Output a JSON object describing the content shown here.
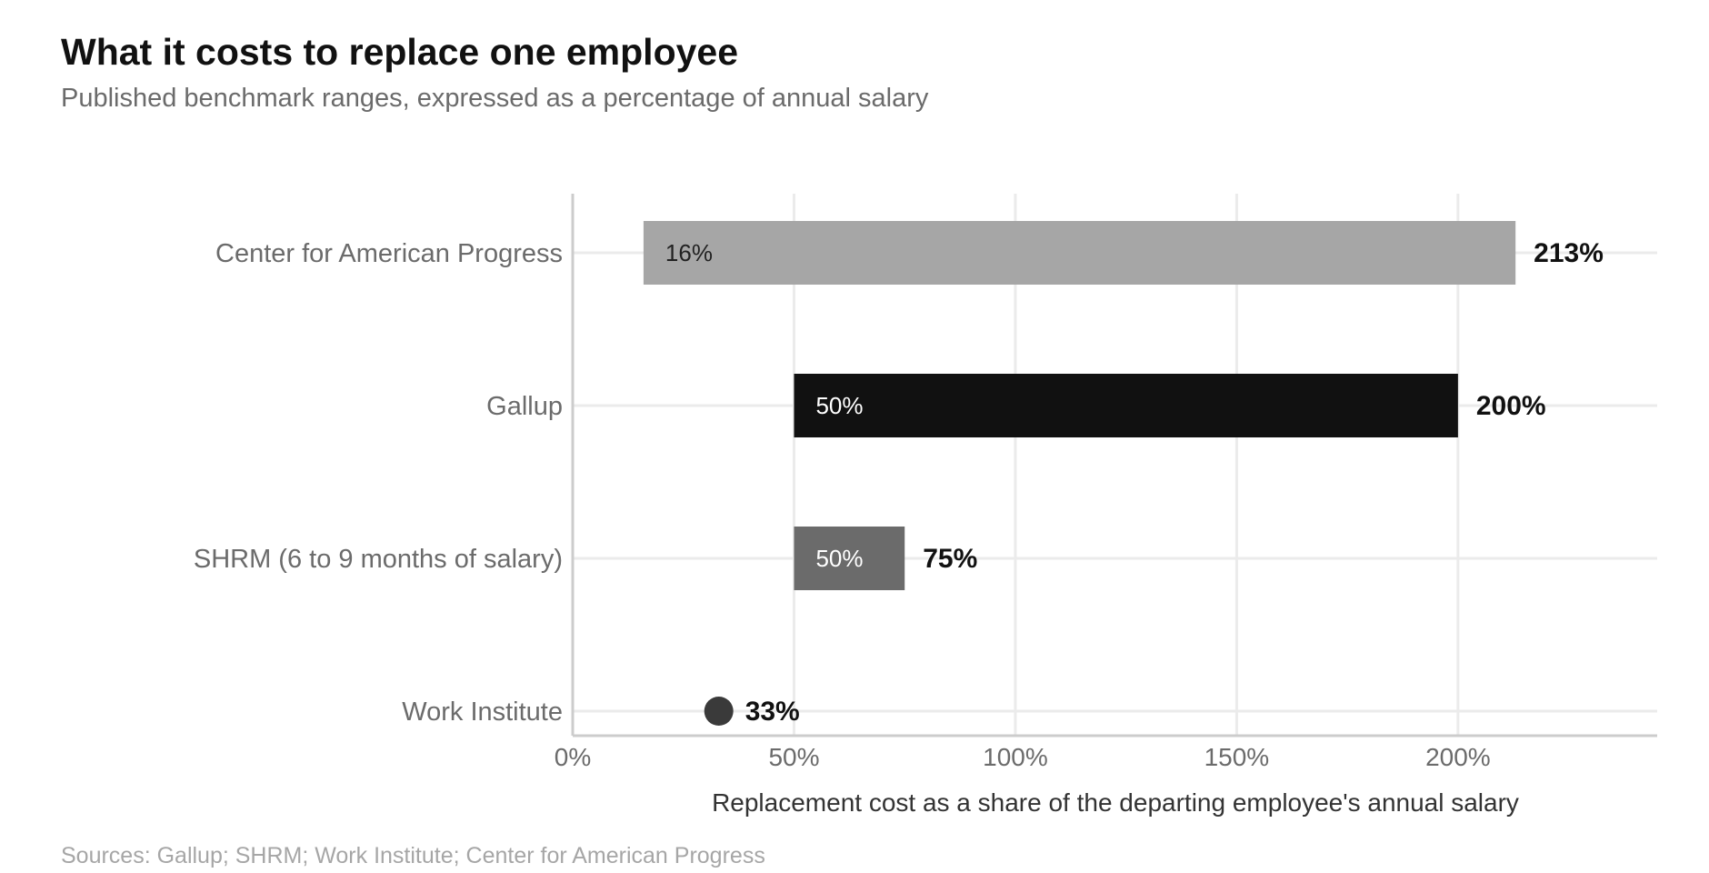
{
  "chart_data": {
    "type": "bar",
    "orientation": "horizontal",
    "style": "floating-range",
    "title": "What it costs to replace one employee",
    "subtitle": "Published benchmark ranges, expressed as a percentage of annual salary",
    "xlabel": "Replacement cost as a share of the departing employee's annual salary",
    "ylabel": "",
    "xlim": [
      0,
      245
    ],
    "x_ticks": [
      0,
      50,
      100,
      150,
      200
    ],
    "x_tick_labels": [
      "0%",
      "50%",
      "100%",
      "150%",
      "200%"
    ],
    "grid": true,
    "legend": "none",
    "categories": [
      "Center for American Progress",
      "Gallup",
      "SHRM (6 to 9 months of salary)",
      "Work Institute"
    ],
    "series": [
      {
        "low": [
          16,
          50,
          50,
          33
        ],
        "high": [
          213,
          200,
          75,
          33
        ],
        "low_labels": [
          "16%",
          "50%",
          "50%",
          ""
        ],
        "high_labels": [
          "213%",
          "200%",
          "75%",
          "33%"
        ],
        "colors": [
          "#a6a6a6",
          "#111111",
          "#6b6b6b",
          "#3a3a3a"
        ],
        "low_label_colors": [
          "#222222",
          "#ffffff",
          "#ffffff",
          ""
        ]
      }
    ]
  },
  "source": "Sources: Gallup; SHRM; Work Institute; Center for American Progress",
  "colors": {
    "title": "#111111",
    "subtitle": "#6b6b6b",
    "category_label": "#6b6b6b",
    "tick_label": "#6b6b6b",
    "axis_label": "#333333",
    "grid": "#ebebeb",
    "axis": "#cccccc",
    "source": "#a6a6a6"
  }
}
